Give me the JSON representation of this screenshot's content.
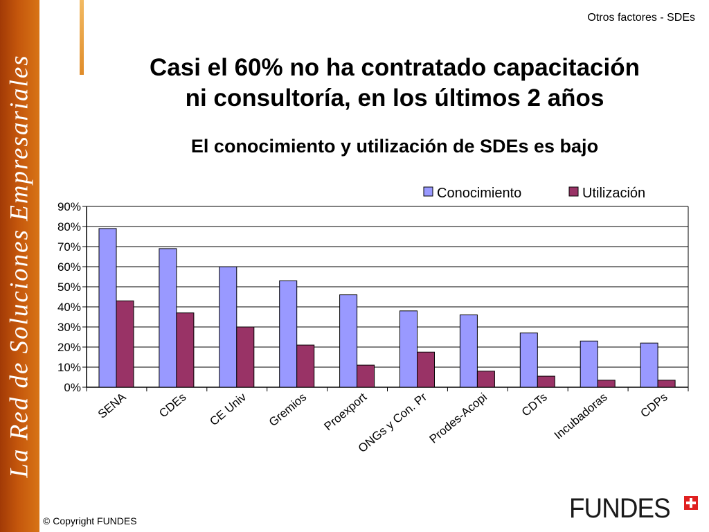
{
  "slide": {
    "section_label": "Otros factores - SDEs",
    "headline_line1": "Casi el 60%  no ha contratado capacitación",
    "headline_line2": "ni consultoría, en los últimos 2 años",
    "subheadline": "El conocimiento y utilización de SDEs es bajo",
    "sidebar_text": "La Red de Soluciones Empresariales",
    "copyright": "© Copyright FUNDES",
    "logo_text": "FUNDES"
  },
  "colors": {
    "sidebar": "#c4560c",
    "accent_bar": "#e8a040",
    "conocimiento": "#9999ff",
    "utilizacion": "#993366"
  },
  "chart_data": {
    "type": "bar",
    "categories": [
      "SENA",
      "CDEs",
      "CE Univ",
      "Gremios",
      "Proexport",
      "ONGs y Con. Pr",
      "Prodes-Acopi",
      "CDTs",
      "Incubadoras",
      "CDPs"
    ],
    "series": [
      {
        "name": "Conocimiento",
        "values": [
          79,
          69,
          60,
          53,
          46,
          38,
          36,
          27,
          23,
          22
        ]
      },
      {
        "name": "Utilización",
        "values": [
          43,
          37,
          30,
          21,
          11,
          17.5,
          8,
          5.5,
          3.5,
          3.5
        ]
      }
    ],
    "ylim": [
      0,
      90
    ],
    "yticks": [
      "0%",
      "10%",
      "20%",
      "30%",
      "40%",
      "50%",
      "60%",
      "70%",
      "80%",
      "90%"
    ],
    "grid": true,
    "legend_position": "top-right"
  }
}
